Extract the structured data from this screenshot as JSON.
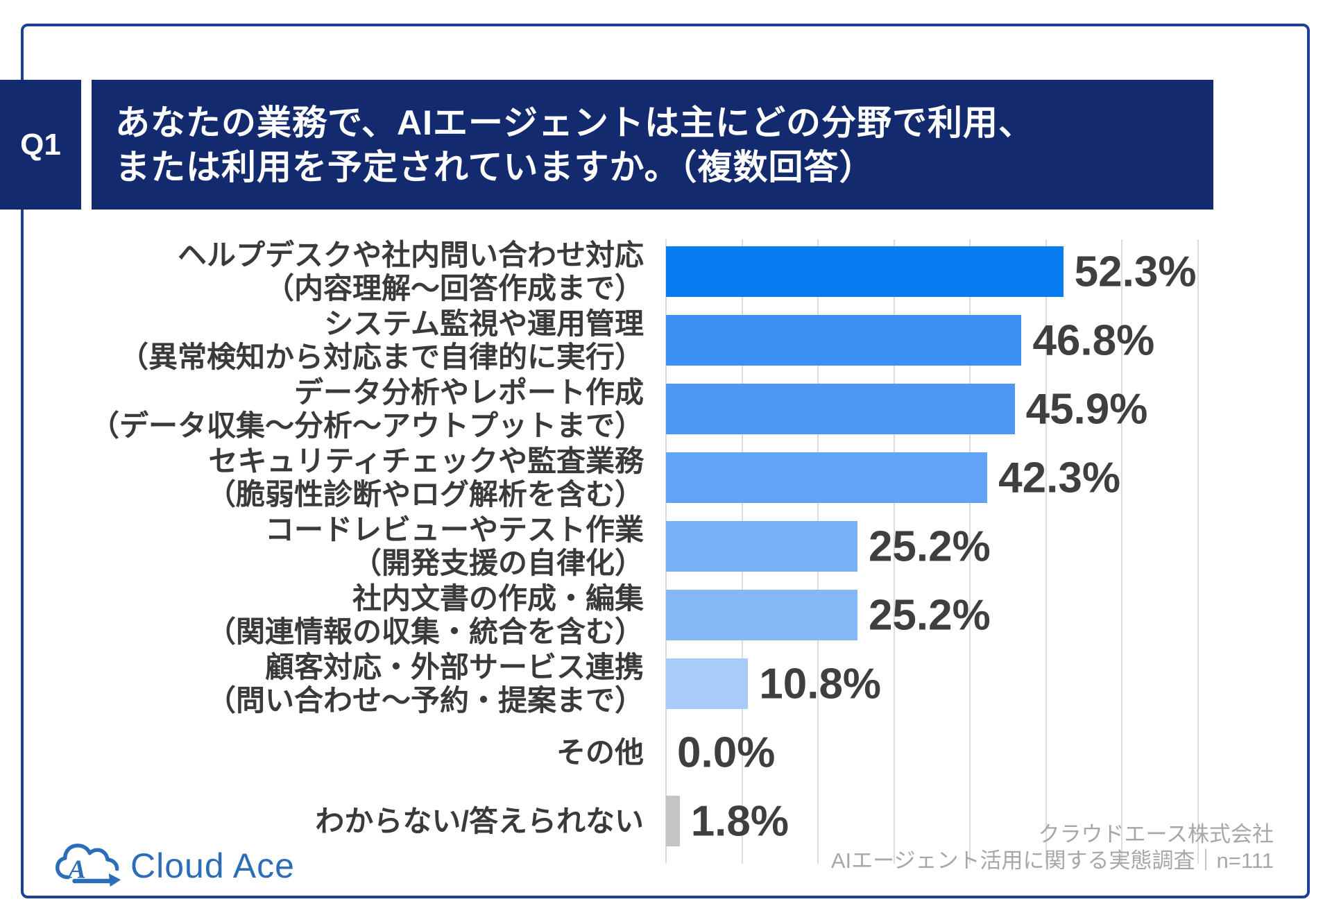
{
  "question": {
    "number": "Q1",
    "title_lines": [
      "あなたの業務で、AIエージェントは主にどの分野で利用、",
      "または利用を予定されていますか。（複数回答）"
    ]
  },
  "chart_data": {
    "type": "bar",
    "orientation": "horizontal",
    "unit": "%",
    "xlim": [
      0,
      70
    ],
    "gridline_step_percent": 10,
    "grid": true,
    "legend": false,
    "categories": [
      {
        "line1": "ヘルプデスクや社内問い合わせ対応",
        "line2": "（内容理解～回答作成まで）"
      },
      {
        "line1": "システム監視や運用管理",
        "line2": "（異常検知から対応まで自律的に実行）"
      },
      {
        "line1": "データ分析やレポート作成",
        "line2": "（データ収集～分析～アウトプットまで）"
      },
      {
        "line1": "セキュリティチェックや監査業務",
        "line2": "（脆弱性診断やログ解析を含む）"
      },
      {
        "line1": "コードレビューやテスト作業",
        "line2": "（開発支援の自律化）"
      },
      {
        "line1": "社内文書の作成・編集",
        "line2": "（関連情報の収集・統合を含む）"
      },
      {
        "line1": "顧客対応・外部サービス連携",
        "line2": "（問い合わせ～予約・提案まで）"
      },
      {
        "line1": "その他",
        "line2": ""
      },
      {
        "line1": "わからない/答えられない",
        "line2": ""
      }
    ],
    "values": [
      52.3,
      46.8,
      45.9,
      42.3,
      25.2,
      25.2,
      10.8,
      0.0,
      1.8
    ],
    "value_labels": [
      "52.3%",
      "46.8%",
      "45.9%",
      "42.3%",
      "25.2%",
      "25.2%",
      "10.8%",
      "0.0%",
      "1.8%"
    ],
    "bar_colors": [
      "#087CF1",
      "#3F90F4",
      "#4E98F4",
      "#62A3F5",
      "#7AB2F7",
      "#84B8F7",
      "#A9CBF9",
      "#C4C4C4",
      "#C4C4C4"
    ]
  },
  "footer": {
    "company": "クラウドエース株式会社",
    "survey": "AIエージェント活用に関する実態調査｜n=111"
  },
  "logo": {
    "text": "Cloud Ace"
  },
  "colors": {
    "header_navy": "#132B6E",
    "border_blue": "#1E3F99",
    "gridline": "#DCDCDC",
    "category_label": "#3A3A3A",
    "value_label": "#3F3F3F",
    "footer_gray": "#A7A7A7",
    "logo_blue": "#2B6DB9"
  }
}
